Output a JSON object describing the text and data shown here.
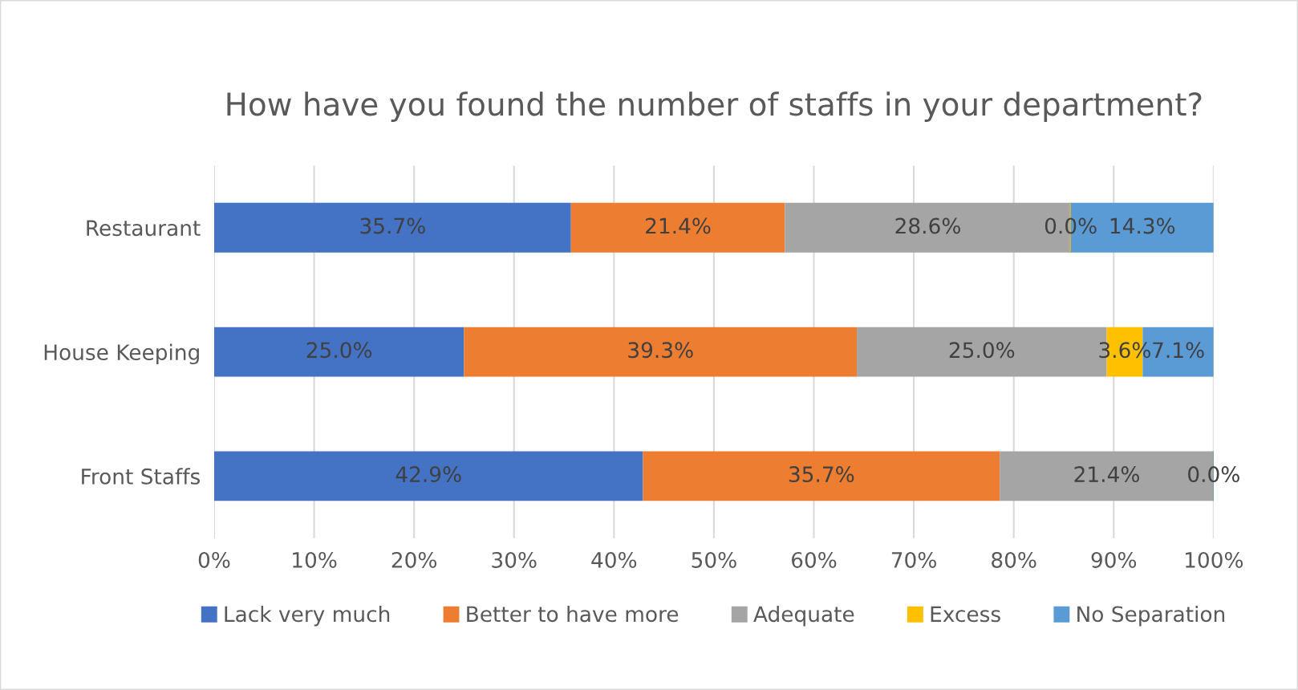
{
  "chart_data": {
    "type": "bar",
    "orientation": "horizontal",
    "stacked": true,
    "title": "How have you found the number of staffs in your department?",
    "categories": [
      "Restaurant",
      "House Keeping",
      "Front Staffs"
    ],
    "series": [
      {
        "name": "Lack very much",
        "color": "#4472c4",
        "values": [
          35.7,
          25.0,
          42.9
        ],
        "value_labels": [
          "35.7%",
          "25.0%",
          "42.9%"
        ]
      },
      {
        "name": "Better to have more",
        "color": "#ed7d31",
        "values": [
          21.4,
          39.3,
          35.7
        ],
        "value_labels": [
          "21.4%",
          "39.3%",
          "35.7%"
        ]
      },
      {
        "name": "Adequate",
        "color": "#a5a5a5",
        "values": [
          28.6,
          25.0,
          21.4
        ],
        "value_labels": [
          "28.6%",
          "25.0%",
          "21.4%"
        ]
      },
      {
        "name": "Excess",
        "color": "#ffc000",
        "values": [
          0.0,
          3.6,
          0.0
        ],
        "value_labels": [
          "0.0%",
          "3.6%",
          "0.0%"
        ]
      },
      {
        "name": "No Separation",
        "color": "#5b9bd5",
        "values": [
          14.3,
          7.1,
          0.0
        ],
        "value_labels": [
          "14.3%",
          "7.1%",
          null
        ]
      }
    ],
    "xlim": [
      0,
      100
    ],
    "xticks": [
      {
        "value": 0,
        "label": "0%"
      },
      {
        "value": 10,
        "label": "10%"
      },
      {
        "value": 20,
        "label": "20%"
      },
      {
        "value": 30,
        "label": "30%"
      },
      {
        "value": 40,
        "label": "40%"
      },
      {
        "value": 50,
        "label": "50%"
      },
      {
        "value": 60,
        "label": "60%"
      },
      {
        "value": 70,
        "label": "70%"
      },
      {
        "value": 80,
        "label": "80%"
      },
      {
        "value": 90,
        "label": "90%"
      },
      {
        "value": 100,
        "label": "100%"
      }
    ],
    "grid": "x",
    "legend": "bottom"
  }
}
